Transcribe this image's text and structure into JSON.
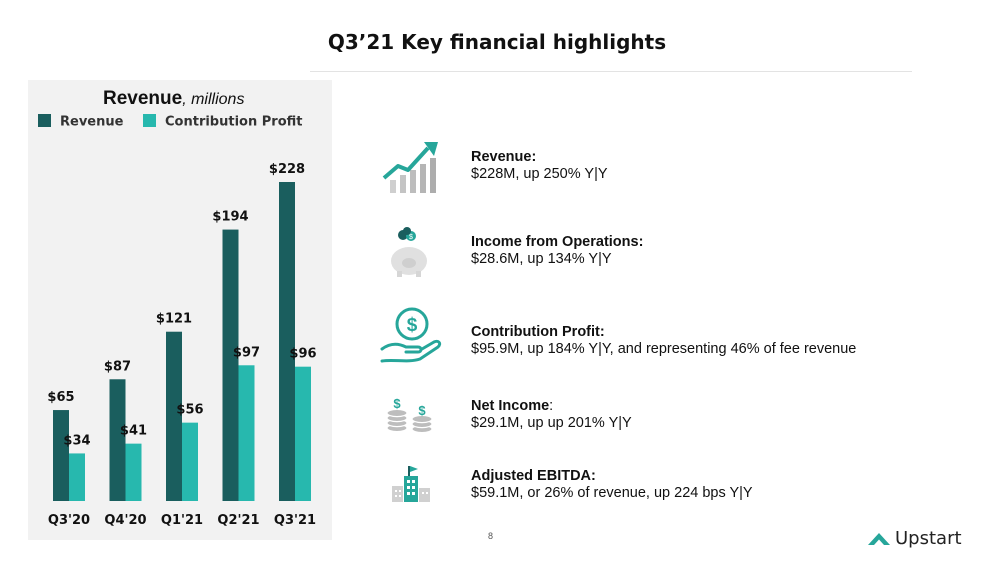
{
  "page": {
    "title": "Q3’21 Key financial highlights",
    "page_number": "8",
    "brand": "Upstart"
  },
  "colors": {
    "revenue": "#1a5e5e",
    "contribution_profit": "#27b8ae",
    "panel": "#f2f2f2",
    "icon_teal": "#26a69a",
    "icon_gray": "#bdbdbd"
  },
  "chart_data": {
    "type": "bar",
    "title": "Revenue",
    "subtitle": ", millions",
    "categories": [
      "Q3'20",
      "Q4'20",
      "Q1'21",
      "Q2'21",
      "Q3'21"
    ],
    "series": [
      {
        "name": "Revenue",
        "values": [
          65,
          87,
          121,
          194,
          228
        ],
        "labels": [
          "$65",
          "$87",
          "$121",
          "$194",
          "$228"
        ]
      },
      {
        "name": "Contribution Profit",
        "values": [
          34,
          41,
          56,
          97,
          96
        ],
        "labels": [
          "$34",
          "$41",
          "$56",
          "$97",
          "$96"
        ]
      }
    ],
    "ylim": [
      0,
      228
    ],
    "grid": false,
    "legend": "top-left"
  },
  "highlights": [
    {
      "icon": "rising-chart-icon",
      "heading": "Revenue:",
      "detail": "$228M, up 250% Y|Y"
    },
    {
      "icon": "piggy-bank-icon",
      "heading": "Income from Operations:",
      "detail": "$28.6M, up 134% Y|Y"
    },
    {
      "icon": "hand-dollar-icon",
      "heading": "Contribution Profit:",
      "detail": "$95.9M, up 184% Y|Y, and representing 46% of fee revenue"
    },
    {
      "icon": "coin-stacks-icon",
      "heading": "Net Income",
      "heading_suffix": ":",
      "detail": "$29.1M, up up 201% Y|Y"
    },
    {
      "icon": "buildings-icon",
      "heading": "Adjusted EBITDA:",
      "detail": "$59.1M, or 26% of revenue, up 224 bps Y|Y"
    }
  ]
}
